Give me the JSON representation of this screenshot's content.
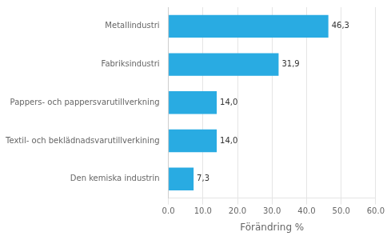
{
  "chart_data": {
    "type": "bar",
    "orientation": "horizontal",
    "categories": [
      "Den kemiska industrin",
      "Textil- och beklädnadsvarutillverkining",
      "Pappers- och pappersvarutillverkning",
      "Fabriksindustri",
      "Metallindustri"
    ],
    "values": [
      7.3,
      14.0,
      14.0,
      31.9,
      46.3
    ],
    "value_labels": [
      "7,3",
      "14,0",
      "14,0",
      "31,9",
      "46,3"
    ],
    "data_labels": true,
    "color": "#29abe2",
    "xlabel": "Förändring %",
    "xlim": [
      0,
      60
    ],
    "xticks": [
      {
        "value": 0,
        "label": "0.0"
      },
      {
        "value": 10,
        "label": "10.0"
      },
      {
        "value": 20,
        "label": "20.0"
      },
      {
        "value": 30,
        "label": "30.0"
      },
      {
        "value": 40,
        "label": "40.0"
      },
      {
        "value": 50,
        "label": "50.0"
      },
      {
        "value": 60,
        "label": "60.0"
      }
    ],
    "grid": true
  }
}
